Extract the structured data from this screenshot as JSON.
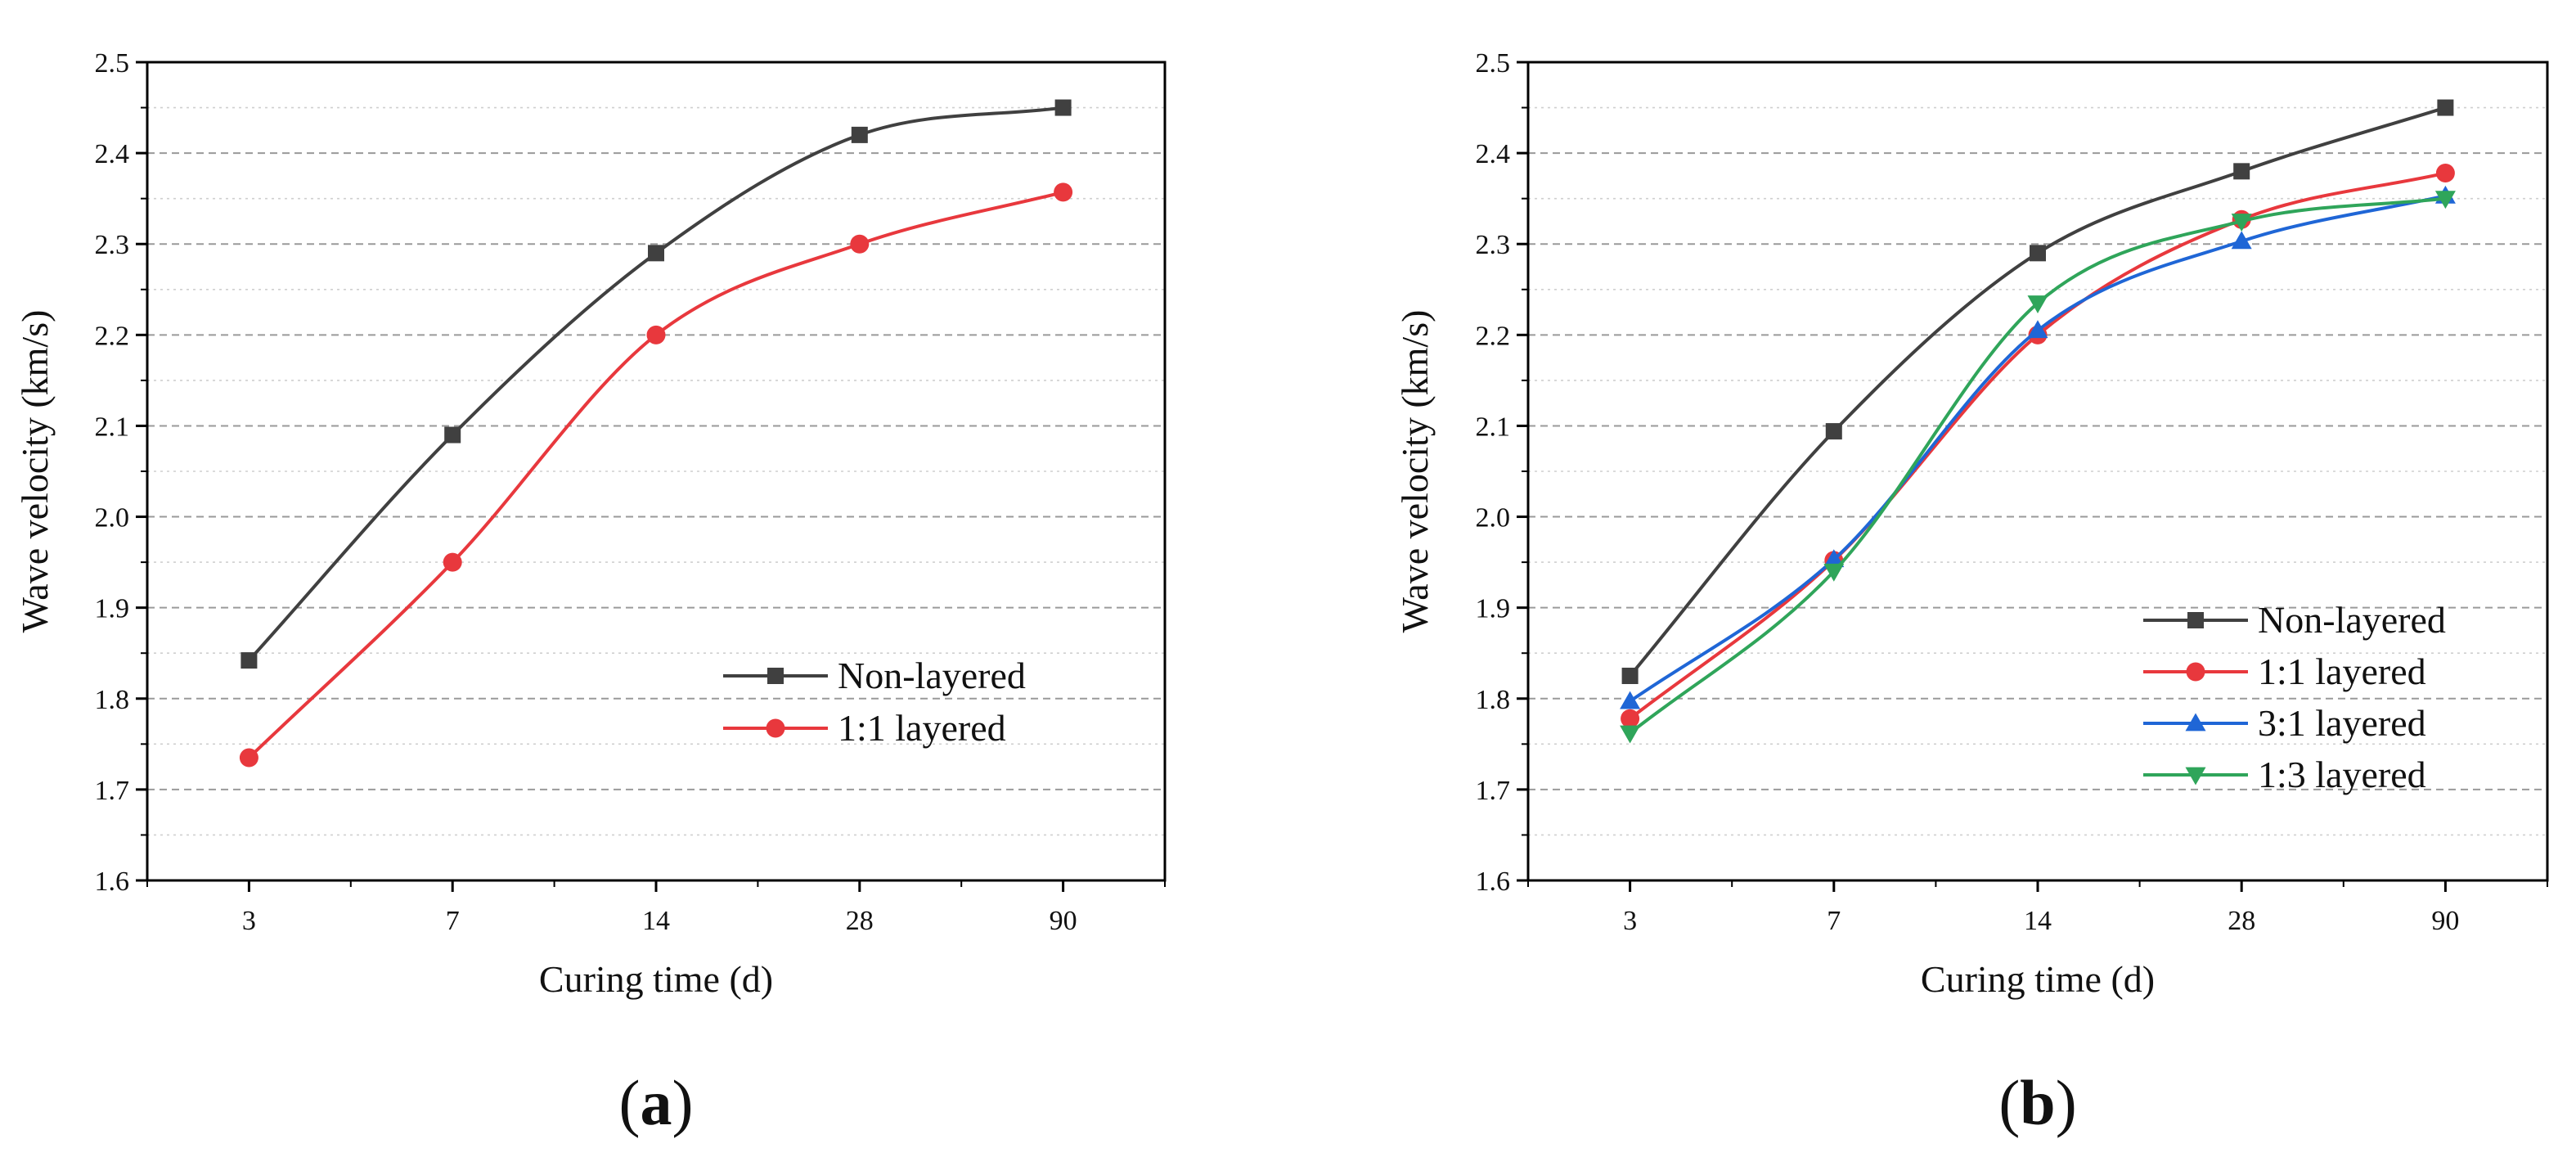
{
  "chart_data": [
    {
      "type": "line",
      "panel_label": {
        "open": "(",
        "letter": "a",
        "close": ")"
      },
      "xlabel": "Curing time (d)",
      "ylabel": "Wave velocity (km/s)",
      "categories": [
        "3",
        "7",
        "14",
        "28",
        "90"
      ],
      "ylim": [
        1.6,
        2.5
      ],
      "yticks": [
        "1.6",
        "1.7",
        "1.8",
        "1.9",
        "2.0",
        "2.1",
        "2.2",
        "2.3",
        "2.4",
        "2.5"
      ],
      "grid": true,
      "legend_position": "lower-right",
      "series": [
        {
          "name": "Non-layered",
          "color": "#404040",
          "marker": "square",
          "values": [
            1.842,
            2.09,
            2.29,
            2.42,
            2.45
          ]
        },
        {
          "name": "1:1 layered",
          "color": "#e8383d",
          "marker": "circle",
          "values": [
            1.735,
            1.95,
            2.2,
            2.3,
            2.357
          ]
        }
      ]
    },
    {
      "type": "line",
      "panel_label": {
        "open": "(",
        "letter": "b",
        "close": ")"
      },
      "xlabel": "Curing time (d)",
      "ylabel": "Wave velocity (km/s)",
      "categories": [
        "3",
        "7",
        "14",
        "28",
        "90"
      ],
      "ylim": [
        1.6,
        2.5
      ],
      "yticks": [
        "1.6",
        "1.7",
        "1.8",
        "1.9",
        "2.0",
        "2.1",
        "2.2",
        "2.3",
        "2.4",
        "2.5"
      ],
      "grid": true,
      "legend_position": "lower-right",
      "series": [
        {
          "name": "Non-layered",
          "color": "#404040",
          "marker": "square",
          "values": [
            1.825,
            2.094,
            2.29,
            2.38,
            2.45
          ]
        },
        {
          "name": "1:1 layered",
          "color": "#e8383d",
          "marker": "circle",
          "values": [
            1.778,
            1.952,
            2.2,
            2.327,
            2.378
          ]
        },
        {
          "name": "3:1 layered",
          "color": "#1f66d6",
          "marker": "triangle-up",
          "values": [
            1.797,
            1.953,
            2.205,
            2.303,
            2.353
          ]
        },
        {
          "name": "1:3 layered",
          "color": "#2fa55a",
          "marker": "triangle-down",
          "values": [
            1.762,
            1.94,
            2.235,
            2.325,
            2.35
          ]
        }
      ]
    }
  ]
}
